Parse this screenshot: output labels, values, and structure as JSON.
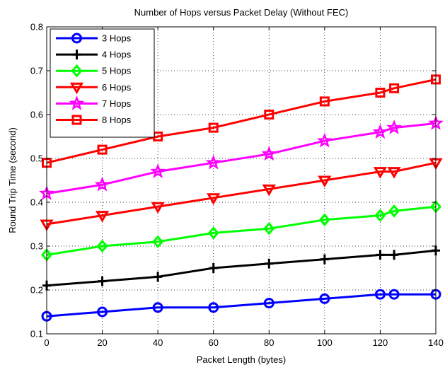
{
  "chart_data": {
    "type": "line",
    "title": "Number of Hops versus Packet Delay  (Without FEC)",
    "xlabel": "Packet Length  (bytes)",
    "ylabel": "Round Trip  Time  (second)",
    "xlim": [
      0,
      140
    ],
    "ylim": [
      0.1,
      0.8
    ],
    "xticks": [
      0,
      20,
      40,
      60,
      80,
      100,
      120,
      140
    ],
    "yticks": [
      0.1,
      0.2,
      0.3,
      0.4,
      0.5,
      0.6,
      0.7,
      0.8
    ],
    "grid": true,
    "legend_position": "top-left",
    "x": [
      0,
      20,
      40,
      60,
      80,
      100,
      120,
      125,
      140
    ],
    "series": [
      {
        "name": "3 Hops",
        "marker": "circle",
        "color": "#0000ff",
        "values": [
          0.14,
          0.15,
          0.16,
          0.16,
          0.17,
          0.18,
          0.19,
          0.19,
          0.19
        ]
      },
      {
        "name": "4 Hops",
        "marker": "plus",
        "color": "#000000",
        "values": [
          0.21,
          0.22,
          0.23,
          0.25,
          0.26,
          0.27,
          0.28,
          0.28,
          0.29
        ]
      },
      {
        "name": "5 Hops",
        "marker": "diamond",
        "color": "#00ff00",
        "values": [
          0.28,
          0.3,
          0.31,
          0.33,
          0.34,
          0.36,
          0.37,
          0.38,
          0.39
        ]
      },
      {
        "name": "6 Hops",
        "marker": "triangle-down",
        "color": "#ff0000",
        "values": [
          0.35,
          0.37,
          0.39,
          0.41,
          0.43,
          0.45,
          0.47,
          0.47,
          0.49
        ]
      },
      {
        "name": "7 Hops",
        "marker": "star",
        "color": "#ff00ff",
        "values": [
          0.42,
          0.44,
          0.47,
          0.49,
          0.51,
          0.54,
          0.56,
          0.57,
          0.58
        ]
      },
      {
        "name": "8 Hops",
        "marker": "square",
        "color": "#ff0000",
        "values": [
          0.49,
          0.52,
          0.55,
          0.57,
          0.6,
          0.63,
          0.65,
          0.66,
          0.68
        ]
      }
    ]
  }
}
